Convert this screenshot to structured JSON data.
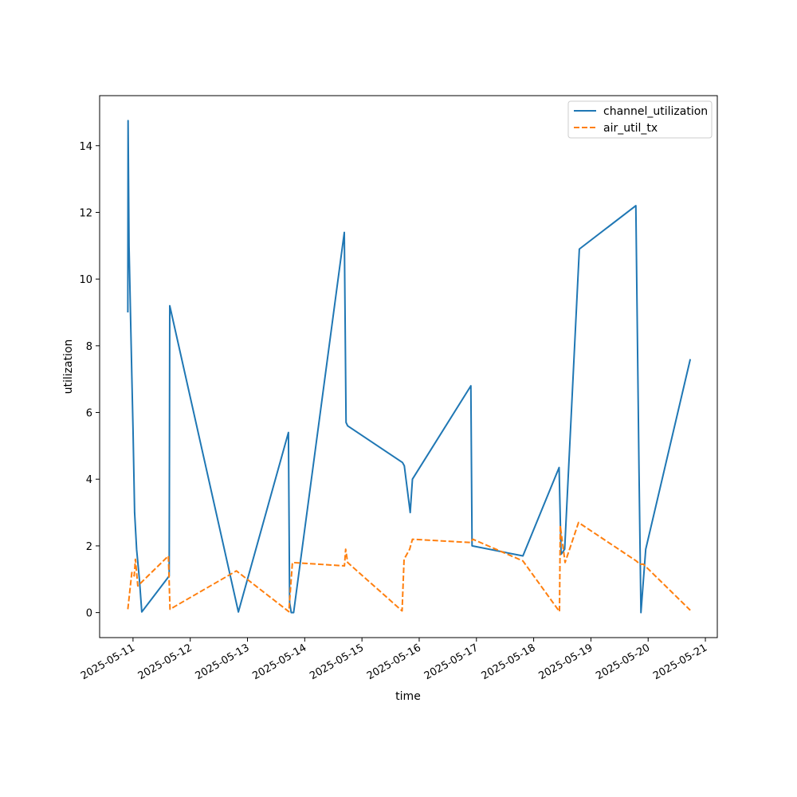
{
  "chart_data": {
    "type": "line",
    "title": "",
    "xlabel": "time",
    "ylabel": "utilization",
    "xlim": [
      "2025-05-10T10:00",
      "2025-05-21T05:00"
    ],
    "ylim": [
      -0.75,
      15.5
    ],
    "x_ticks": [
      "2025-05-11",
      "2025-05-12",
      "2025-05-13",
      "2025-05-14",
      "2025-05-15",
      "2025-05-16",
      "2025-05-17",
      "2025-05-18",
      "2025-05-19",
      "2025-05-20",
      "2025-05-21"
    ],
    "y_ticks": [
      0,
      2,
      4,
      6,
      8,
      10,
      12,
      14
    ],
    "grid": false,
    "legend_position": "top-right",
    "series": [
      {
        "name": "channel_utilization",
        "color": "#1f77b4",
        "dash": "solid",
        "points": [
          [
            "2025-05-10T21:50",
            9.0
          ],
          [
            "2025-05-10T21:55",
            14.75
          ],
          [
            "2025-05-10T22:20",
            11.0
          ],
          [
            "2025-05-10T23:30",
            7.1
          ],
          [
            "2025-05-11T00:00",
            5.5
          ],
          [
            "2025-05-11T00:40",
            3.0
          ],
          [
            "2025-05-11T01:30",
            1.9
          ],
          [
            "2025-05-11T02:40",
            1.0
          ],
          [
            "2025-05-11T03:40",
            0.02
          ],
          [
            "2025-05-11T15:10",
            1.1
          ],
          [
            "2025-05-11T15:25",
            9.2
          ],
          [
            "2025-05-12T20:10",
            0.02
          ],
          [
            "2025-05-13T17:10",
            5.4
          ],
          [
            "2025-05-13T17:40",
            0.3
          ],
          [
            "2025-05-13T18:20",
            0.0
          ],
          [
            "2025-05-13T19:20",
            0.0
          ],
          [
            "2025-05-14T16:35",
            11.4
          ],
          [
            "2025-05-14T17:20",
            5.7
          ],
          [
            "2025-05-14T18:00",
            5.6
          ],
          [
            "2025-05-15T17:00",
            4.5
          ],
          [
            "2025-05-15T17:45",
            4.4
          ],
          [
            "2025-05-15T20:15",
            3.0
          ],
          [
            "2025-05-15T21:10",
            4.0
          ],
          [
            "2025-05-16T21:40",
            6.8
          ],
          [
            "2025-05-16T22:10",
            2.0
          ],
          [
            "2025-05-17T19:30",
            1.7
          ],
          [
            "2025-05-18T10:40",
            4.35
          ],
          [
            "2025-05-18T11:30",
            1.75
          ],
          [
            "2025-05-18T13:00",
            1.9
          ],
          [
            "2025-05-18T19:10",
            10.9
          ],
          [
            "2025-05-19T18:50",
            12.2
          ],
          [
            "2025-05-19T20:10",
            4.2
          ],
          [
            "2025-05-19T21:00",
            0.0
          ],
          [
            "2025-05-19T23:00",
            1.9
          ],
          [
            "2025-05-20T17:40",
            7.6
          ]
        ]
      },
      {
        "name": "air_util_tx",
        "color": "#ff7f0e",
        "dash": "dashed",
        "points": [
          [
            "2025-05-10T21:50",
            0.1
          ],
          [
            "2025-05-10T23:30",
            1.2
          ],
          [
            "2025-05-11T00:30",
            1.1
          ],
          [
            "2025-05-11T01:00",
            1.6
          ],
          [
            "2025-05-11T02:00",
            0.8
          ],
          [
            "2025-05-11T14:50",
            1.7
          ],
          [
            "2025-05-11T15:30",
            0.1
          ],
          [
            "2025-05-12T19:20",
            1.25
          ],
          [
            "2025-05-13T17:20",
            0.03
          ],
          [
            "2025-05-13T18:50",
            1.5
          ],
          [
            "2025-05-14T16:40",
            1.4
          ],
          [
            "2025-05-14T17:10",
            1.9
          ],
          [
            "2025-05-14T18:00",
            1.5
          ],
          [
            "2025-05-15T16:50",
            0.05
          ],
          [
            "2025-05-15T17:40",
            1.6
          ],
          [
            "2025-05-15T20:00",
            1.9
          ],
          [
            "2025-05-15T21:10",
            2.2
          ],
          [
            "2025-05-16T21:30",
            2.1
          ],
          [
            "2025-05-16T22:30",
            2.2
          ],
          [
            "2025-05-17T19:30",
            1.55
          ],
          [
            "2025-05-18T10:50",
            0.03
          ],
          [
            "2025-05-18T11:10",
            2.6
          ],
          [
            "2025-05-18T13:10",
            1.5
          ],
          [
            "2025-05-18T18:50",
            2.7
          ],
          [
            "2025-05-19T19:00",
            1.55
          ],
          [
            "2025-05-19T20:30",
            1.45
          ],
          [
            "2025-05-19T22:00",
            1.45
          ],
          [
            "2025-05-20T17:40",
            0.07
          ]
        ]
      }
    ]
  }
}
